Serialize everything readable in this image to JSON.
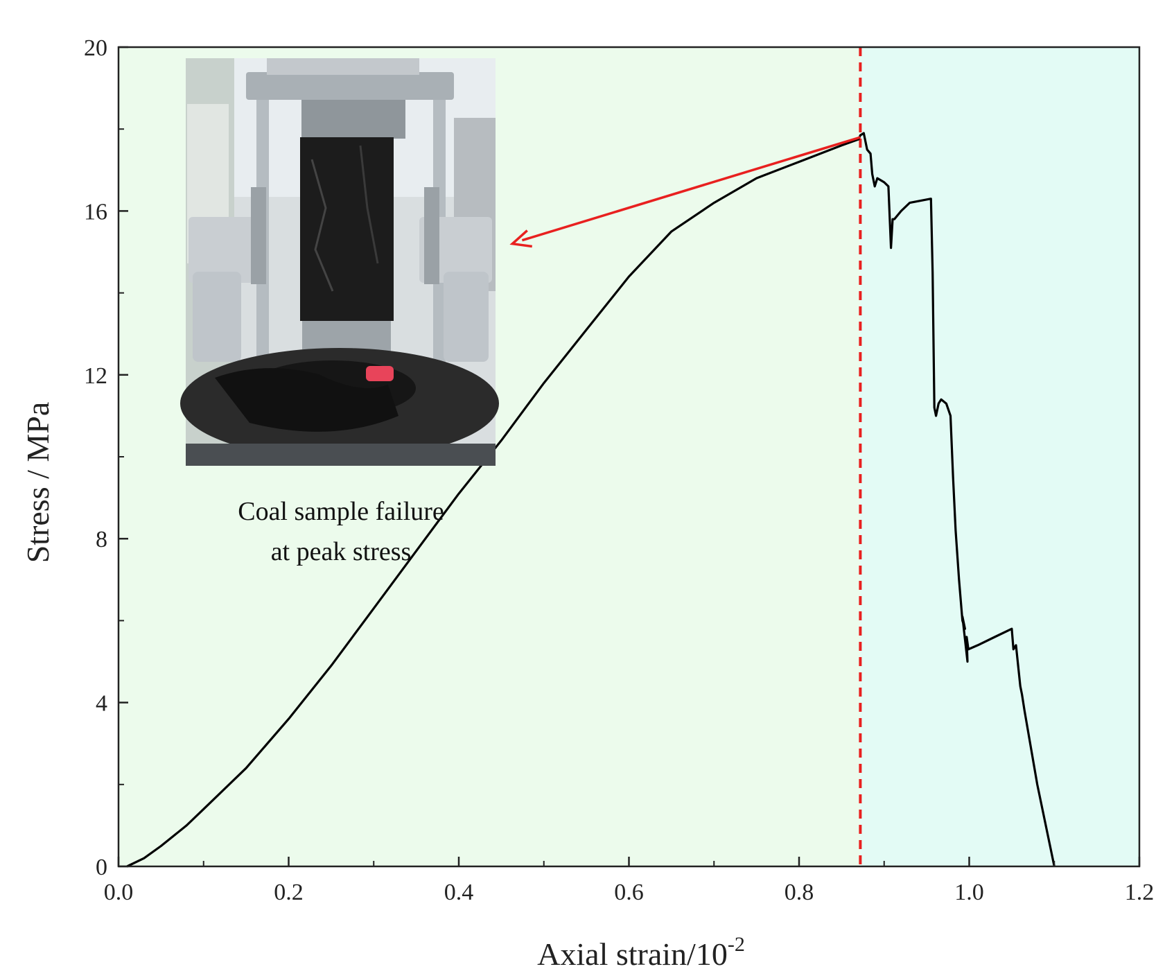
{
  "chart_data": {
    "type": "line",
    "title": "",
    "xlabel": "Axial strain/10",
    "xlabel_exponent": "-2",
    "ylabel": "Stress / MPa",
    "xlim": [
      0.0,
      1.2
    ],
    "ylim": [
      0,
      20
    ],
    "x_ticks": [
      "0.0",
      "0.2",
      "0.4",
      "0.6",
      "0.8",
      "1.0",
      "1.2"
    ],
    "y_ticks": [
      "0",
      "4",
      "8",
      "12",
      "16",
      "20"
    ],
    "grid": false,
    "legend": "none",
    "peak_strain": 0.872,
    "colors": {
      "pre_peak_region": "#ecfbec",
      "post_peak_region": "#e3fbf5",
      "curve": "#000000",
      "peak_line": "#e8201f",
      "arrow": "#e8201f"
    },
    "annotation": {
      "line1": "Coal sample failure",
      "line2": "at peak stress",
      "arrow_from": [
        0.872,
        17.8
      ],
      "arrow_to": [
        0.45,
        15.2
      ],
      "inset_photo": "coal-sample-failure-photo"
    },
    "series": [
      {
        "x": [
          0.01,
          0.03,
          0.05,
          0.08,
          0.1,
          0.15,
          0.2,
          0.25,
          0.3,
          0.35,
          0.4,
          0.45,
          0.5,
          0.55,
          0.6,
          0.65,
          0.7,
          0.75,
          0.8,
          0.85,
          0.87,
          0.872,
          0.876,
          0.88,
          0.884,
          0.886,
          0.889,
          0.892,
          0.9,
          0.905,
          0.908,
          0.91,
          0.912,
          0.92,
          0.93,
          0.955,
          0.957,
          0.959,
          0.961,
          0.964,
          0.967,
          0.973,
          0.978,
          0.981,
          0.984,
          0.988,
          0.992,
          0.995,
          0.992,
          0.998,
          0.997,
          0.999,
          1.01,
          1.03,
          1.05,
          1.052,
          1.055,
          1.058,
          1.06,
          1.062,
          1.065,
          1.08,
          1.1
        ],
        "y": [
          0,
          0.2,
          0.5,
          1.0,
          1.4,
          2.4,
          3.6,
          4.9,
          6.3,
          7.7,
          9.1,
          10.4,
          11.8,
          13.1,
          14.4,
          15.5,
          16.2,
          16.8,
          17.2,
          17.6,
          17.75,
          17.85,
          17.9,
          17.5,
          17.4,
          16.9,
          16.6,
          16.8,
          16.7,
          16.6,
          15.1,
          15.8,
          15.8,
          16.0,
          16.2,
          16.3,
          14.5,
          11.2,
          11.0,
          11.3,
          11.4,
          11.3,
          11.0,
          9.5,
          8.2,
          7.0,
          6.0,
          5.8,
          6.1,
          5.0,
          5.6,
          5.3,
          5.4,
          5.6,
          5.8,
          5.3,
          5.4,
          4.8,
          4.4,
          4.2,
          3.8,
          2.0,
          0
        ]
      }
    ]
  }
}
